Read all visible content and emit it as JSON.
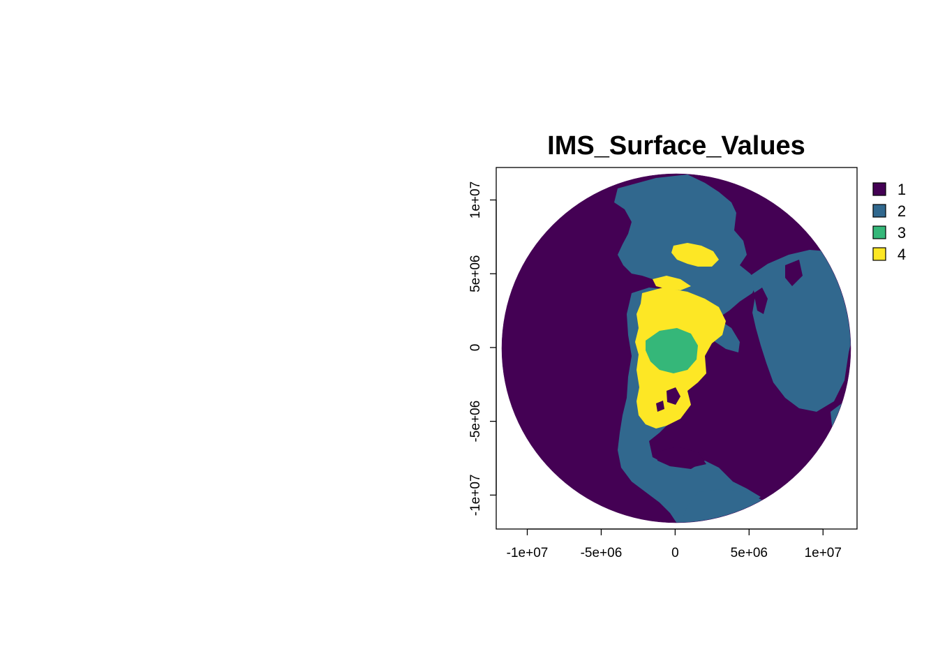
{
  "map": {
    "title": "IMS_Surface_Values",
    "x_axis": {
      "ticks": [
        {
          "value": -10000000,
          "label": "-1e+07"
        },
        {
          "value": -5000000,
          "label": "-5e+06"
        },
        {
          "value": 0,
          "label": "0"
        },
        {
          "value": 5000000,
          "label": "5e+06"
        },
        {
          "value": 10000000,
          "label": "1e+07"
        }
      ],
      "range": [
        -12100000,
        12300000
      ]
    },
    "y_axis": {
      "ticks": [
        {
          "value": -10000000,
          "label": "-1e+07"
        },
        {
          "value": -5000000,
          "label": "-5e+06"
        },
        {
          "value": 0,
          "label": "0"
        },
        {
          "value": 5000000,
          "label": "5e+06"
        },
        {
          "value": 10000000,
          "label": "1e+07"
        }
      ],
      "range": [
        -12300000,
        12200000
      ]
    },
    "projection": "polar stereographic (north pole centered disk)",
    "legend": {
      "placement": "right",
      "entries": [
        {
          "label": "1",
          "color": "#440154"
        },
        {
          "label": "2",
          "color": "#31688E"
        },
        {
          "label": "3",
          "color": "#35B779"
        },
        {
          "label": "4",
          "color": "#FDE725"
        }
      ]
    }
  }
}
